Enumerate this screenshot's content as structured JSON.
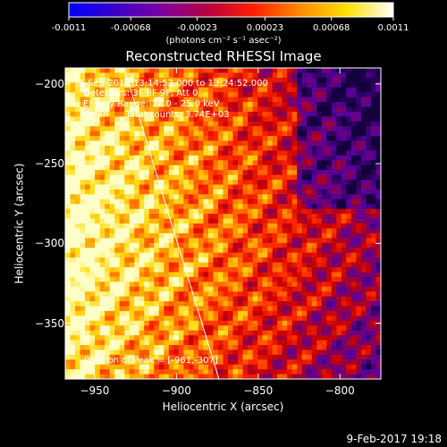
{
  "colorbar": {
    "tick_labels": [
      "-0.0011",
      "-0.00068",
      "-0.00023",
      "0.00023",
      "0.00068",
      "0.0011"
    ],
    "tick_values": [
      -0.0011,
      -0.00068,
      -0.00023,
      0.00023,
      0.00068,
      0.0011
    ],
    "units": "(photons cm⁻² s⁻¹ asec⁻²)",
    "colors": [
      "#0000ff",
      "#3a00c8",
      "#7d00a0",
      "#b80040",
      "#ff2000",
      "#ff8c00",
      "#ffe000",
      "#ffffff"
    ]
  },
  "chart_data": {
    "type": "heatmap",
    "title": "Reconstructed RHESSI Image",
    "xlabel": "Heliocentric X (arcsec)",
    "ylabel": "Heliocentric Y (arcsec)",
    "xlim": [
      -968,
      -775
    ],
    "ylim": [
      -385,
      -190
    ],
    "xticks": [
      -950,
      -900,
      -850,
      -800
    ],
    "xtick_labels": [
      "−950",
      "−900",
      "−850",
      "−800"
    ],
    "yticks": [
      -200,
      -250,
      -300,
      -350
    ],
    "ytick_labels": [
      "−200",
      "−250",
      "−300",
      "−350"
    ],
    "limb_line": [
      [
        -932,
        -190
      ],
      [
        -874,
        -385
      ]
    ],
    "peak_position": [
      -961,
      -307
    ],
    "annotations": {
      "time": "5-Sep-2014 13:14:52.000 to 13:24:52.000",
      "detectors": "Detectors: 3F 8F 9F, Att 0",
      "energy": "Energy Range: 12.0 - 25.0 keV",
      "clean": "Clean      Total counts: 3.74E+03",
      "peak": "Position of Peak = [-961,-307]"
    }
  },
  "footer": {
    "date": "9-Feb-2017 19:18"
  }
}
